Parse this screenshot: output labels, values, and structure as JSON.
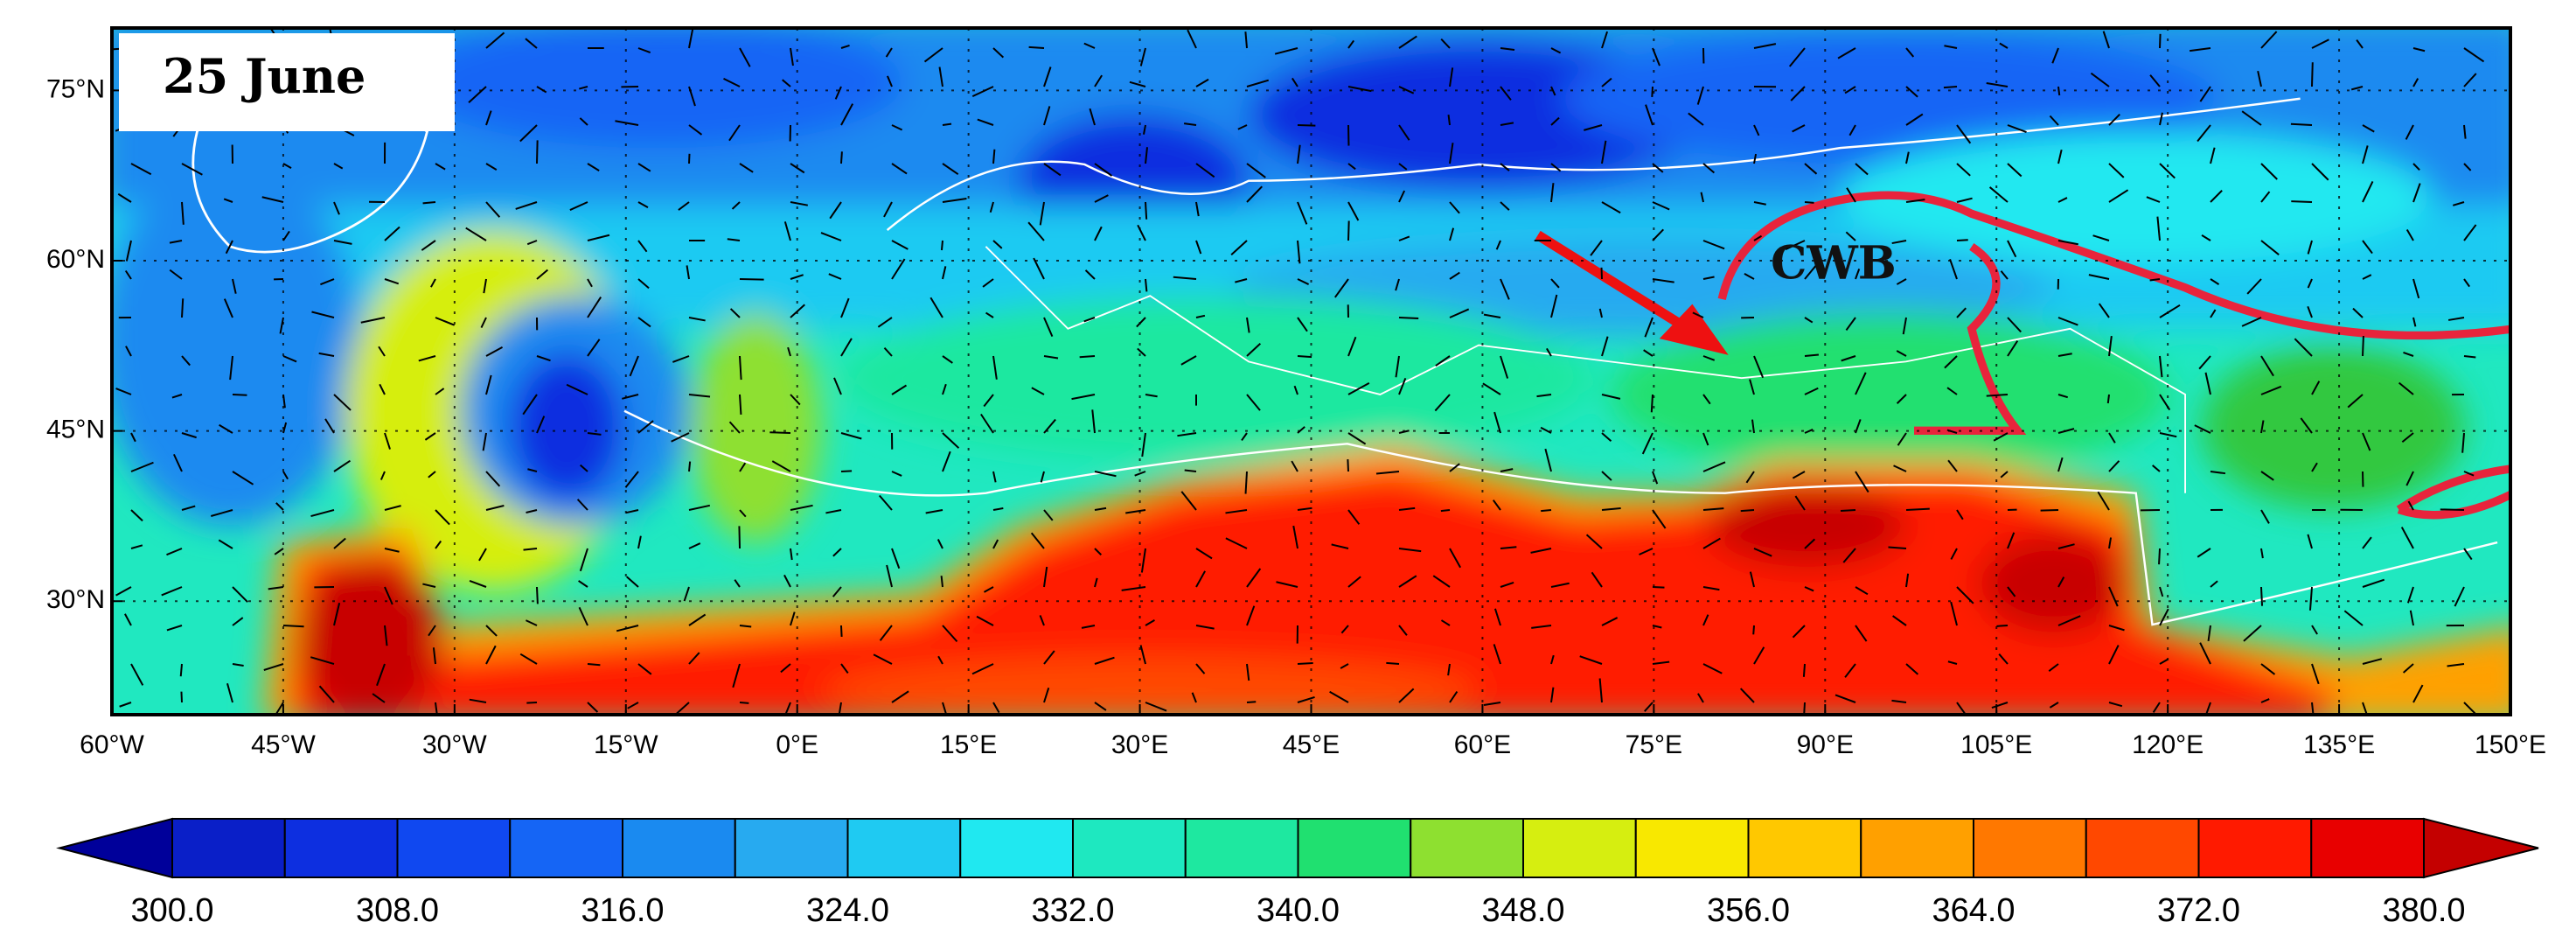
{
  "chart_data": {
    "type": "map",
    "title": "25 June",
    "annotation": "CWB",
    "xlim": [
      -60,
      150
    ],
    "ylim": [
      20,
      80.5
    ],
    "xticks": [
      {
        "value": -60,
        "label": "60°W"
      },
      {
        "value": -45,
        "label": "45°W"
      },
      {
        "value": -30,
        "label": "30°W"
      },
      {
        "value": -15,
        "label": "15°W"
      },
      {
        "value": 0,
        "label": "0°E"
      },
      {
        "value": 15,
        "label": "15°E"
      },
      {
        "value": 30,
        "label": "30°E"
      },
      {
        "value": 45,
        "label": "45°E"
      },
      {
        "value": 60,
        "label": "60°E"
      },
      {
        "value": 75,
        "label": "75°E"
      },
      {
        "value": 90,
        "label": "90°E"
      },
      {
        "value": 105,
        "label": "105°E"
      },
      {
        "value": 120,
        "label": "120°E"
      },
      {
        "value": 135,
        "label": "135°E"
      },
      {
        "value": 150,
        "label": "150°E"
      }
    ],
    "yticks": [
      {
        "value": 30,
        "label": "30°N"
      },
      {
        "value": 45,
        "label": "45°N"
      },
      {
        "value": 60,
        "label": "60°N"
      },
      {
        "value": 75,
        "label": "75°N"
      }
    ],
    "grid": true,
    "colorbar": {
      "range": [
        300,
        380
      ],
      "ticks": [
        {
          "value": 300,
          "label": "300.0"
        },
        {
          "value": 308,
          "label": "308.0"
        },
        {
          "value": 316,
          "label": "316.0"
        },
        {
          "value": 324,
          "label": "324.0"
        },
        {
          "value": 332,
          "label": "332.0"
        },
        {
          "value": 340,
          "label": "340.0"
        },
        {
          "value": 348,
          "label": "348.0"
        },
        {
          "value": 356,
          "label": "356.0"
        },
        {
          "value": 364,
          "label": "364.0"
        },
        {
          "value": 372,
          "label": "372.0"
        },
        {
          "value": 380,
          "label": "380.0"
        }
      ],
      "under_color": "#00009a",
      "over_color": "#c40000",
      "colors": [
        "#0a1fc8",
        "#0d2fe0",
        "#1048f0",
        "#1565f5",
        "#1a8af0",
        "#27aaf0",
        "#1fcaf2",
        "#20e8f0",
        "#1ee8c0",
        "#1ee8a0",
        "#20e070",
        "#8ee030",
        "#d6ee10",
        "#f8e800",
        "#ffc800",
        "#ffa000",
        "#ff7800",
        "#ff4800",
        "#ff1a00",
        "#e80000"
      ]
    }
  }
}
